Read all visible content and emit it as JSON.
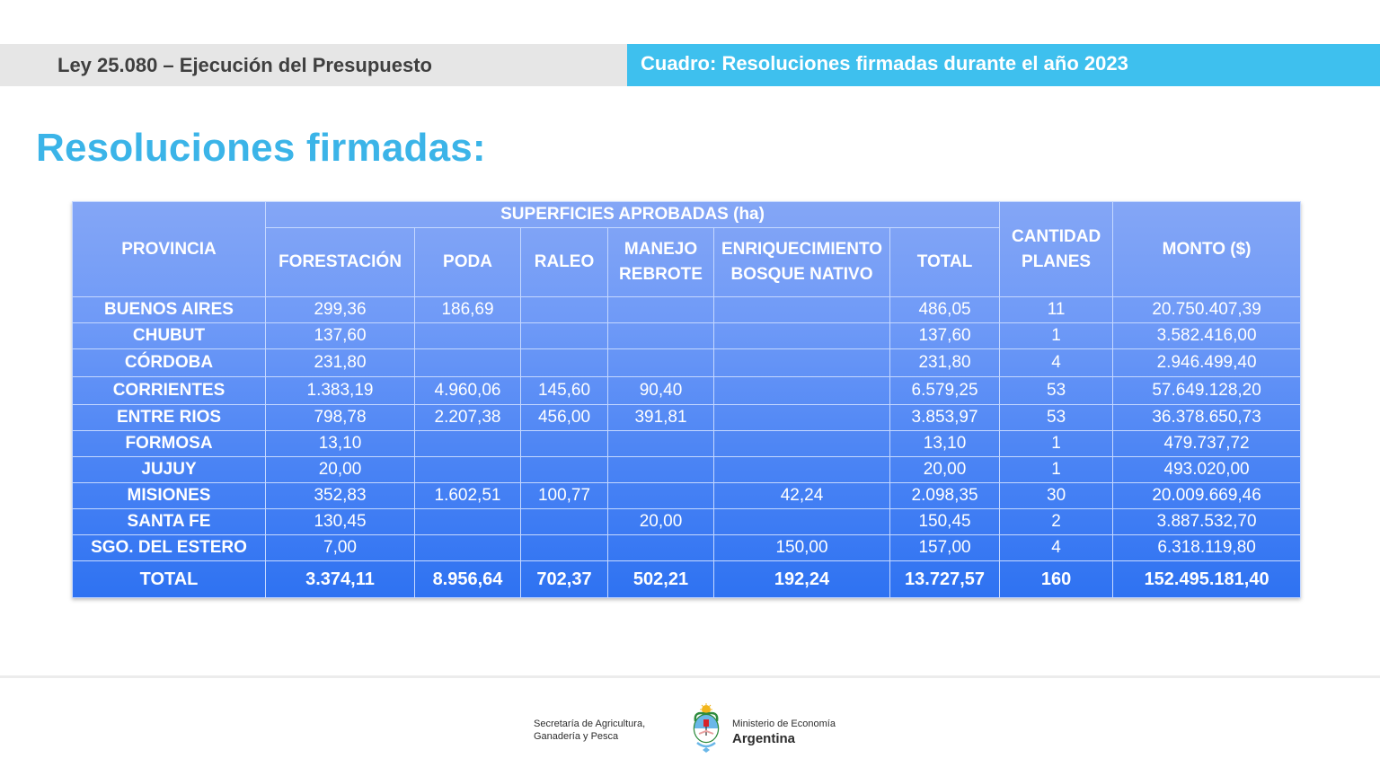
{
  "header": {
    "left_title": "Ley 25.080 – Ejecución del Presupuesto",
    "right_title": "Cuadro: Resoluciones firmadas durante el año 2023"
  },
  "page_title": "Resoluciones firmadas:",
  "table": {
    "col_provincia": "PROVINCIA",
    "group_superficies": "SUPERFICIES APROBADAS (ha)",
    "col_forestacion": "FORESTACIÓN",
    "col_poda": "PODA",
    "col_raleo": "RALEO",
    "col_manejo_1": "MANEJO",
    "col_manejo_2": "REBROTE",
    "col_enriq_1": "ENRIQUECIMIENTO",
    "col_enriq_2": "BOSQUE NATIVO",
    "col_total": "TOTAL",
    "col_cantidad_1": "CANTIDAD",
    "col_cantidad_2": "PLANES",
    "col_monto": "MONTO ($)",
    "rows": [
      [
        "BUENOS AIRES",
        "299,36",
        "186,69",
        "",
        "",
        "",
        "486,05",
        "11",
        "20.750.407,39"
      ],
      [
        "CHUBUT",
        "137,60",
        "",
        "",
        "",
        "",
        "137,60",
        "1",
        "3.582.416,00"
      ],
      [
        "CÓRDOBA",
        "231,80",
        "",
        "",
        "",
        "",
        "231,80",
        "4",
        "2.946.499,40"
      ],
      [
        "CORRIENTES",
        "1.383,19",
        "4.960,06",
        "145,60",
        "90,40",
        "",
        "6.579,25",
        "53",
        "57.649.128,20"
      ],
      [
        "ENTRE RIOS",
        "798,78",
        "2.207,38",
        "456,00",
        "391,81",
        "",
        "3.853,97",
        "53",
        "36.378.650,73"
      ],
      [
        "FORMOSA",
        "13,10",
        "",
        "",
        "",
        "",
        "13,10",
        "1",
        "479.737,72"
      ],
      [
        "JUJUY",
        "20,00",
        "",
        "",
        "",
        "",
        "20,00",
        "1",
        "493.020,00"
      ],
      [
        "MISIONES",
        "352,83",
        "1.602,51",
        "100,77",
        "",
        "42,24",
        "2.098,35",
        "30",
        "20.009.669,46"
      ],
      [
        "SANTA FE",
        "130,45",
        "",
        "",
        "20,00",
        "",
        "150,45",
        "2",
        "3.887.532,70"
      ],
      [
        "SGO. DEL ESTERO",
        "7,00",
        "",
        "",
        "",
        "150,00",
        "157,00",
        "4",
        "6.318.119,80"
      ]
    ],
    "total_row": [
      "TOTAL",
      "3.374,11",
      "8.956,64",
      "702,37",
      "502,21",
      "192,24",
      "13.727,57",
      "160",
      "152.495.181,40"
    ]
  },
  "footer": {
    "secretaria_line1": "Secretaría de Agricultura,",
    "secretaria_line2": "Ganadería y Pesca",
    "ministerio_line1": "Ministerio de Economía",
    "ministerio_line2": "Argentina",
    "seal_icon": "argentina-coat-of-arms-icon"
  },
  "colors": {
    "header_left_bg": "#e6e6e6",
    "header_right_bg": "#3ec0ee",
    "title": "#3bb4e8",
    "table_top": "#84a6f6",
    "table_bottom": "#2e72f2"
  }
}
